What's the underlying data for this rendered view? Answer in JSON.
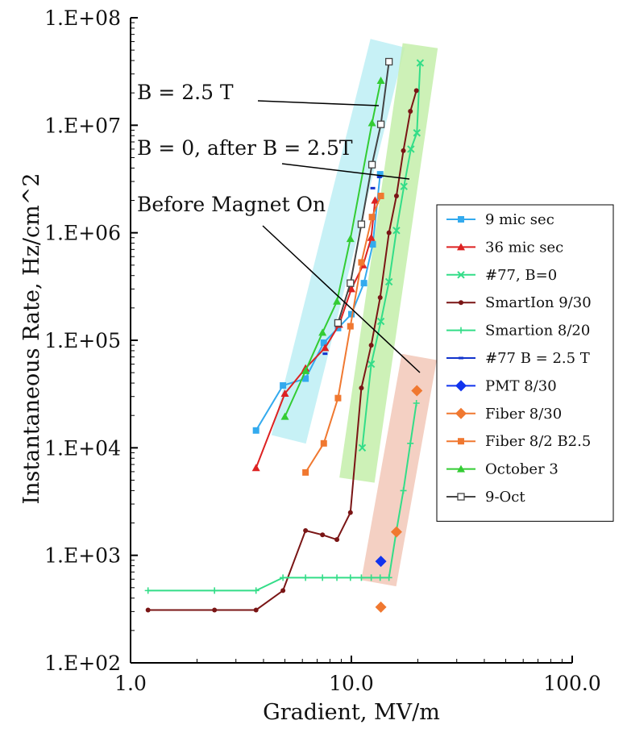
{
  "chart_data": {
    "type": "line",
    "xscale": "log",
    "yscale": "log",
    "xlim": [
      1.0,
      100.0
    ],
    "ylim": [
      100,
      100000000
    ],
    "xlabel": "Gradient, MV/m",
    "ylabel": "Instantaneous Rate, Hz/cm^2",
    "x_tick_labels": [
      {
        "value": 1.0,
        "label": "1.0"
      },
      {
        "value": 10.0,
        "label": "10.0"
      },
      {
        "value": 100.0,
        "label": "100.0"
      }
    ],
    "y_tick_labels": [
      {
        "value": 100,
        "label": "1.E+02"
      },
      {
        "value": 1000,
        "label": "1.E+03"
      },
      {
        "value": 10000,
        "label": "1.E+04"
      },
      {
        "value": 100000,
        "label": "1.E+05"
      },
      {
        "value": 1000000,
        "label": "1.E+06"
      },
      {
        "value": 10000000,
        "label": "1.E+07"
      },
      {
        "value": 100000000,
        "label": "1.E+08"
      }
    ],
    "grid": false,
    "legend_position": "right",
    "series": [
      {
        "name": "9 mic sec",
        "color": "#33aaee",
        "marker": "square-filled",
        "line": true,
        "x": [
          3.7,
          4.9,
          6.2,
          7.5,
          8.7,
          10.0,
          11.4,
          12.5,
          13.5
        ],
        "y": [
          14500,
          38000,
          44000,
          95000,
          130000,
          175000,
          340000,
          780000,
          3500000
        ]
      },
      {
        "name": "36 mic sec",
        "color": "#dd2222",
        "marker": "triangle",
        "line": true,
        "x": [
          3.7,
          5.0,
          6.2,
          7.6,
          8.8,
          10.0,
          11.3,
          12.3,
          12.8
        ],
        "y": [
          6500,
          32000,
          55000,
          85000,
          140000,
          300000,
          500000,
          900000,
          2000000
        ]
      },
      {
        "name": "#77, B=0",
        "color": "#33dd88",
        "marker": "x",
        "line": true,
        "x": [
          11.2,
          12.3,
          13.6,
          14.8,
          16.0,
          17.3,
          18.6,
          19.8,
          20.5
        ],
        "y": [
          10000,
          60000,
          150000,
          350000,
          1050000,
          2700000,
          6000000,
          8500000,
          38000000
        ]
      },
      {
        "name": "SmartIon 9/30",
        "color": "#7a1515",
        "marker": "circle-small",
        "line": true,
        "x": [
          1.2,
          2.4,
          3.7,
          4.9,
          6.2,
          7.4,
          8.6,
          9.9,
          11.1,
          12.3,
          13.5,
          14.8,
          16.0,
          17.2,
          18.5,
          19.7
        ],
        "y": [
          310,
          310,
          310,
          470,
          1700,
          1550,
          1400,
          2500,
          36000,
          90000,
          250000,
          1000000,
          2200000,
          5800000,
          13500000,
          21000000
        ]
      },
      {
        "name": "Smartion 8/20",
        "color": "#33dd88",
        "marker": "plus",
        "line": true,
        "x": [
          1.2,
          2.4,
          3.7,
          4.9,
          6.2,
          7.4,
          8.6,
          9.9,
          11.1,
          12.3,
          13.5,
          14.8,
          16.0,
          17.2,
          18.5,
          19.7
        ],
        "y": [
          470,
          470,
          470,
          620,
          620,
          620,
          620,
          620,
          620,
          620,
          620,
          620,
          1700,
          4000,
          11000,
          26000
        ]
      },
      {
        "name": "#77 B = 2.5 T",
        "color": "#1133cc",
        "marker": "dash",
        "line": false,
        "x": [
          7.6,
          12.5,
          13.4
        ],
        "y": [
          75000,
          2600000,
          3300000
        ]
      },
      {
        "name": "PMT 8/30",
        "color": "#1133ee",
        "marker": "diamond",
        "line": false,
        "x": [
          13.6
        ],
        "y": [
          880
        ]
      },
      {
        "name": "Fiber 8/30",
        "color": "#f07830",
        "marker": "diamond",
        "line": false,
        "x": [
          13.6,
          16.0,
          19.8
        ],
        "y": [
          330,
          1650,
          34000
        ]
      },
      {
        "name": "Fiber 8/2 B2.5",
        "color": "#f07830",
        "marker": "square-filled",
        "line": true,
        "x": [
          6.2,
          7.5,
          8.7,
          9.9,
          11.1,
          12.4,
          13.6
        ],
        "y": [
          5900,
          11000,
          29000,
          135000,
          530000,
          1400000,
          2200000
        ]
      },
      {
        "name": "October 3",
        "color": "#33cc33",
        "marker": "triangle",
        "line": true,
        "x": [
          5.0,
          6.2,
          7.4,
          8.6,
          9.9,
          12.4,
          13.6
        ],
        "y": [
          19500,
          52000,
          118000,
          230000,
          880000,
          10500000,
          26000000
        ]
      },
      {
        "name": "9-Oct",
        "color": "#444444",
        "marker": "square-open",
        "line": true,
        "x": [
          8.7,
          9.9,
          11.1,
          12.4,
          13.6,
          14.8
        ],
        "y": [
          145000,
          340000,
          1200000,
          4300000,
          10200000,
          39000000
        ]
      }
    ],
    "highlight_bands": [
      {
        "name": "blue-band",
        "color": "#bdeef5",
        "from": {
          "x": 5.2,
          "y": 12000
        },
        "to": {
          "x": 14.6,
          "y": 58000000
        }
      },
      {
        "name": "green-band",
        "color": "#c4eeaa",
        "from": {
          "x": 10.6,
          "y": 5000
        },
        "to": {
          "x": 20.5,
          "y": 55000000
        }
      },
      {
        "name": "salmon-band",
        "color": "#f2c8b8",
        "from": {
          "x": 13.3,
          "y": 550
        },
        "to": {
          "x": 20.3,
          "y": 70000
        }
      }
    ],
    "annotations": [
      {
        "text": "B = 2.5 T",
        "pointer_to": {
          "x": 13.2,
          "y": 20500000
        }
      },
      {
        "text": "B = 0, after B = 2.5T",
        "pointer_to": {
          "x": 18.2,
          "y": 3200000
        }
      },
      {
        "text": "Before Magnet On",
        "pointer_to": {
          "x": 19.5,
          "y": 38000
        }
      }
    ]
  }
}
